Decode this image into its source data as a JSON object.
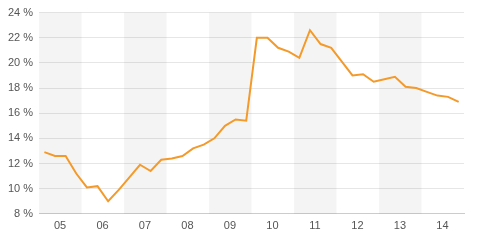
{
  "chart_data": {
    "type": "line",
    "categories": [
      null,
      "05",
      null,
      null,
      null,
      "06",
      null,
      null,
      null,
      "07",
      null,
      null,
      null,
      "08",
      null,
      null,
      null,
      "09",
      null,
      null,
      null,
      "10",
      null,
      null,
      null,
      "11",
      null,
      null,
      null,
      "12",
      null,
      null,
      null,
      "13",
      null,
      null,
      null,
      "14",
      null,
      null
    ],
    "values": [
      12.9,
      12.6,
      12.6,
      11.2,
      10.1,
      10.2,
      9.0,
      9.9,
      10.9,
      11.9,
      11.4,
      12.3,
      12.4,
      12.6,
      13.2,
      13.5,
      14.0,
      15.0,
      15.5,
      15.4,
      22.0,
      22.0,
      21.2,
      20.9,
      20.4,
      22.6,
      21.5,
      21.2,
      20.1,
      19.0,
      19.1,
      18.5,
      18.7,
      18.9,
      18.1,
      18.0,
      17.7,
      17.4,
      17.3,
      16.9
    ],
    "color": "#f39a2b",
    "ylim": [
      8,
      24
    ],
    "yticks": [
      {
        "value": 8,
        "label": "8 %"
      },
      {
        "value": 10,
        "label": "10 %"
      },
      {
        "value": 12,
        "label": "12 %"
      },
      {
        "value": 14,
        "label": "14 %"
      },
      {
        "value": 16,
        "label": "16 %"
      },
      {
        "value": 18,
        "label": "18 %"
      },
      {
        "value": 20,
        "label": "20 %"
      },
      {
        "value": 22,
        "label": "22 %"
      },
      {
        "value": 24,
        "label": "24 %"
      }
    ],
    "grid": true
  }
}
